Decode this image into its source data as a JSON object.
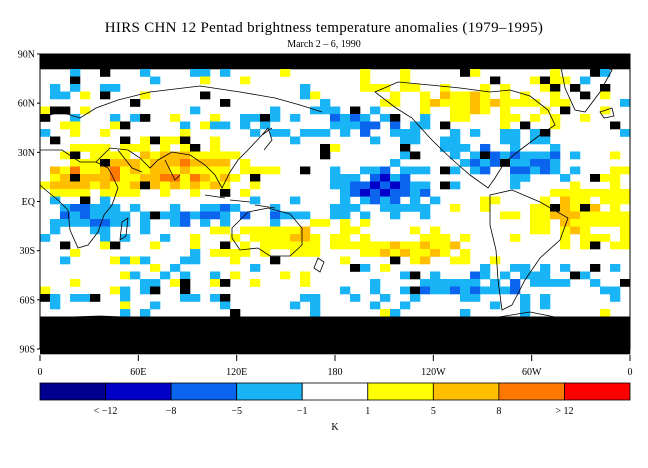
{
  "title": "HIRS CHN 12 Pentad brightness temperature anomalies (1979–1995)",
  "subtitle": "March 2 – 6, 1990",
  "map": {
    "lat_labels": [
      "90N",
      "60N",
      "30N",
      "EQ",
      "30S",
      "60S",
      "90S"
    ],
    "lat_values": [
      90,
      60,
      30,
      0,
      -30,
      -60,
      -90
    ],
    "lon_labels": [
      "0",
      "60E",
      "120E",
      "180",
      "120W",
      "60W",
      "0"
    ],
    "lon_values": [
      0,
      60,
      120,
      180,
      240,
      300,
      360
    ],
    "missing_data_color": "#000000",
    "coastline_color": "#000000"
  },
  "colorbar": {
    "unit_label": "K",
    "tick_labels": [
      "< −12",
      "−8",
      "−5",
      "−1",
      "1",
      "5",
      "8",
      "> 12"
    ],
    "colors": [
      "#000090",
      "#0000c8",
      "#0a64ee",
      "#19b4f5",
      "#ffffff",
      "#ffff00",
      "#ffbe00",
      "#ff7800",
      "#ff0000"
    ]
  }
}
